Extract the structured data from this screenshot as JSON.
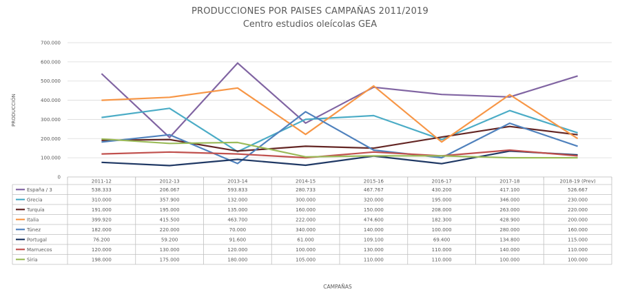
{
  "chart_data": {
    "type": "line",
    "title": "PRODUCCIONES POR PAISES CAMPAÑAS 2011/2019",
    "subtitle": "Centro estudios oleícolas GEA",
    "ylabel": "PRODUCCIÓN",
    "xlabel": "CAMPAÑAS",
    "ylim": [
      0,
      700000
    ],
    "yticks": [
      "0",
      "100.000",
      "200.000",
      "300.000",
      "400.000",
      "500.000",
      "600.000",
      "700.000"
    ],
    "grid": true,
    "legend": "data-table",
    "categories": [
      "2011-12",
      "2012-13",
      "2013-14",
      "2014-15",
      "2015-16",
      "2016-17",
      "2017-18",
      "2018-19 (Prev)"
    ],
    "series": [
      {
        "name": "España / 3",
        "color": "#8064a2",
        "values": [
          538333,
          206067,
          593833,
          280733,
          467767,
          430200,
          417100,
          526667
        ],
        "labels": [
          "538.333",
          "206.067",
          "593.833",
          "280.733",
          "467.767",
          "430.200",
          "417.100",
          "526.667"
        ]
      },
      {
        "name": "Grecia",
        "color": "#4bacc6",
        "values": [
          310000,
          357900,
          132000,
          300000,
          320000,
          195000,
          346000,
          230000
        ],
        "labels": [
          "310.000",
          "357.900",
          "132.000",
          "300.000",
          "320.000",
          "195.000",
          "346.000",
          "230.000"
        ]
      },
      {
        "name": "Turquía",
        "color": "#632523",
        "values": [
          191000,
          195000,
          135000,
          160000,
          150000,
          208000,
          263000,
          220000
        ],
        "labels": [
          "191.000",
          "195.000",
          "135.000",
          "160.000",
          "150.000",
          "208.000",
          "263.000",
          "220.000"
        ]
      },
      {
        "name": "Italia",
        "color": "#f79646",
        "values": [
          399920,
          415500,
          463700,
          222000,
          474600,
          182300,
          428900,
          200000
        ],
        "labels": [
          "399.920",
          "415.500",
          "463.700",
          "222.000",
          "474.600",
          "182.300",
          "428.900",
          "200.000"
        ]
      },
      {
        "name": "Túnez",
        "color": "#4f81bd",
        "values": [
          182000,
          220000,
          70000,
          340000,
          140000,
          100000,
          280000,
          160000
        ],
        "labels": [
          "182.000",
          "220.000",
          "70.000",
          "340.000",
          "140.000",
          "100.000",
          "280.000",
          "160.000"
        ]
      },
      {
        "name": "Portugal",
        "color": "#1f3864",
        "values": [
          76200,
          59200,
          91600,
          61000,
          109100,
          69400,
          134800,
          115000
        ],
        "labels": [
          "76.200",
          "59.200",
          "91.600",
          "61.000",
          "109.100",
          "69.400",
          "134.800",
          "115.000"
        ]
      },
      {
        "name": "Marruecos",
        "color": "#c0504d",
        "values": [
          120000,
          130000,
          120000,
          100000,
          130000,
          110000,
          140000,
          110000
        ],
        "labels": [
          "120.000",
          "130.000",
          "120.000",
          "100.000",
          "130.000",
          "110.000",
          "140.000",
          "110.000"
        ]
      },
      {
        "name": "Siria",
        "color": "#9bbb59",
        "values": [
          198000,
          175000,
          180000,
          105000,
          110000,
          110000,
          100000,
          100000
        ],
        "labels": [
          "198.000",
          "175.000",
          "180.000",
          "105.000",
          "110.000",
          "110.000",
          "100.000",
          "100.000"
        ]
      }
    ]
  }
}
